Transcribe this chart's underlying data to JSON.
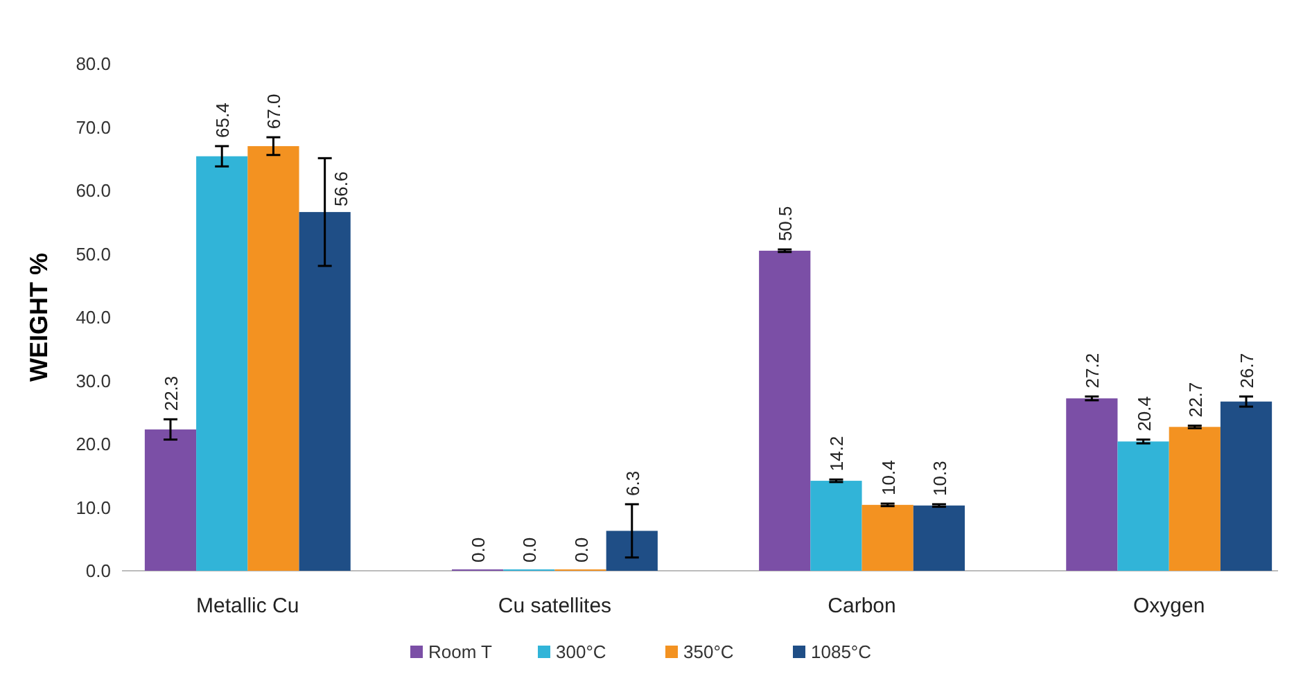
{
  "chart_data": {
    "type": "bar",
    "ylabel": "WEIGHT %",
    "categories": [
      "Metallic Cu",
      "Cu satellites",
      "Carbon",
      "Oxygen"
    ],
    "ylim": [
      0,
      80
    ],
    "yticks": [
      {
        "value": 0,
        "label": "0.0"
      },
      {
        "value": 10,
        "label": "10.0"
      },
      {
        "value": 20,
        "label": "20.0"
      },
      {
        "value": 30,
        "label": "30.0"
      },
      {
        "value": 40,
        "label": "40.0"
      },
      {
        "value": 50,
        "label": "50.0"
      },
      {
        "value": 60,
        "label": "60.0"
      },
      {
        "value": 70,
        "label": "70.0"
      },
      {
        "value": 80,
        "label": "80.0"
      }
    ],
    "legend": "bottom",
    "grid": false,
    "series": [
      {
        "name": "Room T",
        "color": "#7b4fa6",
        "values": [
          22.3,
          0,
          50.5,
          27.2
        ],
        "errors": [
          1.6,
          null,
          0.2,
          0.3
        ],
        "value_labels": [
          "22.3",
          "0.0",
          "50.5",
          "27.2"
        ]
      },
      {
        "name": "300°C",
        "color": "#31b4d8",
        "values": [
          65.4,
          0,
          14.2,
          20.4
        ],
        "errors": [
          1.6,
          null,
          0.2,
          0.3
        ],
        "value_labels": [
          "65.4",
          "0.0",
          "14.2",
          "20.4"
        ]
      },
      {
        "name": "350°C",
        "color": "#f39221",
        "values": [
          67.0,
          0,
          10.4,
          22.7
        ],
        "errors": [
          1.4,
          null,
          0.2,
          0.2
        ],
        "value_labels": [
          "67.0",
          "0.0",
          "10.4",
          "22.7"
        ]
      },
      {
        "name": "1085°C",
        "color": "#1f4e86",
        "values": [
          56.6,
          6.3,
          10.3,
          26.7
        ],
        "errors": [
          8.5,
          4.2,
          0.2,
          0.8
        ],
        "value_labels": [
          "56.6",
          "6.3",
          "10.3",
          "26.7"
        ]
      }
    ]
  }
}
